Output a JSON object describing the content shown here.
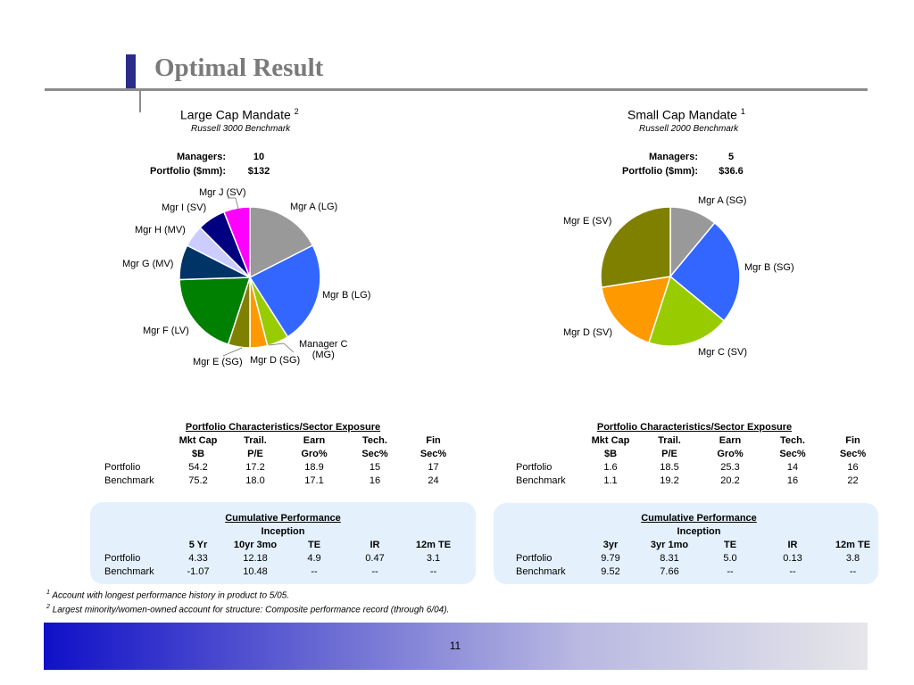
{
  "title": "Optimal Result",
  "page_number": "11",
  "large": {
    "mandate": "Large Cap Mandate",
    "mandate_sup": "2",
    "benchmark": "Russell 3000 Benchmark",
    "managers_label": "Managers:",
    "managers_value": "10",
    "portfolio_label": "Portfolio ($mm):",
    "portfolio_value": "$132",
    "labels": {
      "a": "Mgr A (LG)",
      "b": "Mgr B (LG)",
      "c1": "Manager C",
      "c2": "(MG)",
      "d": "Mgr D (SG)",
      "e": "Mgr E (SG)",
      "f": "Mgr F (LV)",
      "g": "Mgr G (MV)",
      "h": "Mgr H (MV)",
      "i": "Mgr I (SV)",
      "j": "Mgr J (SV)"
    },
    "chars": {
      "title": "Portfolio Characteristics/Sector Exposure",
      "head1": [
        "Mkt Cap",
        "Trail.",
        "Earn",
        "Tech.",
        "Fin"
      ],
      "head2": [
        "$B",
        "P/E",
        "Gro%",
        "Sec%",
        "Sec%"
      ],
      "rows": [
        {
          "label": "Portfolio",
          "values": [
            "54.2",
            "17.2",
            "18.9",
            "15",
            "17"
          ]
        },
        {
          "label": "Benchmark",
          "values": [
            "75.2",
            "18.0",
            "17.1",
            "16",
            "24"
          ]
        }
      ]
    },
    "perf": {
      "title": "Cumulative Performance",
      "inception": "Inception",
      "head": [
        "5 Yr",
        "10yr 3mo",
        "TE",
        "IR",
        "12m TE"
      ],
      "rows": [
        {
          "label": "Portfolio",
          "values": [
            "4.33",
            "12.18",
            "4.9",
            "0.47",
            "3.1"
          ]
        },
        {
          "label": "Benchmark",
          "values": [
            "-1.07",
            "10.48",
            "--",
            "--",
            "--"
          ]
        }
      ]
    }
  },
  "small": {
    "mandate": "Small Cap Mandate",
    "mandate_sup": "1",
    "benchmark": "Russell 2000 Benchmark",
    "managers_label": "Managers:",
    "managers_value": "5",
    "portfolio_label": "Portfolio ($mm):",
    "portfolio_value": "$36.6",
    "labels": {
      "a": "Mgr A (SG)",
      "b": "Mgr B (SG)",
      "c": "Mgr C (SV)",
      "d": "Mgr D (SV)",
      "e": "Mgr E (SV)"
    },
    "chars": {
      "title": "Portfolio Characteristics/Sector Exposure",
      "head1": [
        "Mkt Cap",
        "Trail.",
        "Earn",
        "Tech.",
        "Fin"
      ],
      "head2": [
        "$B",
        "P/E",
        "Gro%",
        "Sec%",
        "Sec%"
      ],
      "rows": [
        {
          "label": "Portfolio",
          "values": [
            "1.6",
            "18.5",
            "25.3",
            "14",
            "16"
          ]
        },
        {
          "label": "Benchmark",
          "values": [
            "1.1",
            "19.2",
            "20.2",
            "16",
            "22"
          ]
        }
      ]
    },
    "perf": {
      "title": "Cumulative Performance",
      "inception": "Inception",
      "head": [
        "3yr",
        "3yr 1mo",
        "TE",
        "IR",
        "12m TE"
      ],
      "rows": [
        {
          "label": "Portfolio",
          "values": [
            "9.79",
            "8.31",
            "5.0",
            "0.13",
            "3.8"
          ]
        },
        {
          "label": "Benchmark",
          "values": [
            "9.52",
            "7.66",
            "--",
            "--",
            "--"
          ]
        }
      ]
    }
  },
  "footnotes": [
    {
      "sup": "1",
      "text": "Account with longest performance history in product to 5/05."
    },
    {
      "sup": "2",
      "text": "Largest minority/women-owned account for structure: Composite performance record (through 6/04)."
    }
  ],
  "chart_data": [
    {
      "type": "pie",
      "title": "Large Cap Mandate",
      "labels": [
        "Mgr A (LG)",
        "Mgr B (LG)",
        "Manager C (MG)",
        "Mgr D (SG)",
        "Mgr E (SG)",
        "Mgr F (LV)",
        "Mgr G (MV)",
        "Mgr H (MV)",
        "Mgr I (SV)",
        "Mgr J (SV)"
      ],
      "values": [
        17.5,
        23.5,
        5,
        4,
        5,
        19.5,
        8,
        5,
        6.5,
        6
      ],
      "colors": [
        "#999999",
        "#3366ff",
        "#99cc00",
        "#ff9900",
        "#808000",
        "#008000",
        "#003366",
        "#ccccff",
        "#000080",
        "#ff00ff"
      ]
    },
    {
      "type": "pie",
      "title": "Small Cap Mandate",
      "labels": [
        "Mgr A (SG)",
        "Mgr B (SG)",
        "Mgr C (SV)",
        "Mgr D (SV)",
        "Mgr E (SV)"
      ],
      "values": [
        11,
        25,
        19,
        17.5,
        27.5
      ],
      "colors": [
        "#999999",
        "#3366ff",
        "#99cc00",
        "#ff9900",
        "#808000"
      ]
    }
  ]
}
